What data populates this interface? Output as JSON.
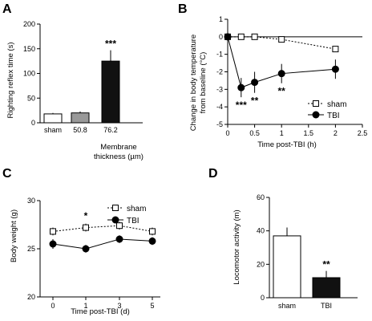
{
  "chart_data": [
    {
      "panel": "A",
      "type": "bar",
      "ylabel": "Righting reflex time (s)",
      "xlabel": "Membrane thickness (µm)",
      "xlabel_lines": [
        "Membrane",
        "thickness (µm)"
      ],
      "ylim": [
        0,
        200
      ],
      "yticks": [
        "0",
        "50",
        "100",
        "150",
        "200"
      ],
      "categories": [
        "sham",
        "50.8",
        "76.2"
      ],
      "values": [
        18,
        20,
        125
      ],
      "errors": [
        2,
        3,
        22
      ],
      "colors": [
        "#ffffff",
        "#999999",
        "#111111"
      ],
      "annotations": [
        "",
        "",
        "***"
      ]
    },
    {
      "panel": "B",
      "type": "line",
      "ylabel": "Change in body temperature from baseline (°C)",
      "ylabel_lines": [
        "Change in body temperature",
        "from baseline (°C)"
      ],
      "xlabel": "Time post-TBI (h)",
      "xlim": [
        0,
        2.5
      ],
      "ylim": [
        -5,
        1
      ],
      "xticks": [
        "0",
        "0.5",
        "1",
        "1.5",
        "2",
        "2.5"
      ],
      "yticks": [
        "1",
        "0",
        "-1",
        "-2",
        "-3",
        "-4",
        "-5"
      ],
      "x": [
        0,
        0.25,
        0.5,
        1,
        2
      ],
      "series": [
        {
          "name": "sham",
          "values": [
            0,
            0,
            0,
            -0.15,
            -0.7
          ],
          "errors": [
            0.1,
            0.1,
            0.1,
            0.15,
            0.15
          ],
          "marker": "open-square",
          "dashed": true
        },
        {
          "name": "TBI",
          "values": [
            0,
            -2.9,
            -2.6,
            -2.1,
            -1.85
          ],
          "errors": [
            0.1,
            0.55,
            0.6,
            0.55,
            0.55
          ],
          "marker": "filled-circle",
          "dashed": false
        }
      ],
      "annotations": [
        {
          "x": 0.25,
          "text": "***"
        },
        {
          "x": 0.5,
          "text": "**"
        },
        {
          "x": 1,
          "text": "**"
        }
      ],
      "legend_position": "right"
    },
    {
      "panel": "C",
      "type": "line",
      "ylabel": "Body weight (g)",
      "xlabel": "Time post-TBI (d)",
      "ylim": [
        20,
        30
      ],
      "yticks": [
        "20",
        "25",
        "30"
      ],
      "categories": [
        "0",
        "1",
        "3",
        "5"
      ],
      "series": [
        {
          "name": "sham",
          "values": [
            26.8,
            27.2,
            27.4,
            26.8
          ],
          "errors": [
            0.4,
            0.4,
            0.4,
            0.4
          ],
          "marker": "open-square",
          "dashed": true
        },
        {
          "name": "TBI",
          "values": [
            25.5,
            25.0,
            26.0,
            25.8
          ],
          "errors": [
            0.5,
            0.4,
            0.4,
            0.4
          ],
          "marker": "filled-circle",
          "dashed": false
        }
      ],
      "annotations": [
        {
          "index": 1,
          "text": "*"
        }
      ],
      "legend_position": "top-right"
    },
    {
      "panel": "D",
      "type": "bar",
      "ylabel": "Locomotor activity (m)",
      "ylim": [
        0,
        60
      ],
      "yticks": [
        "0",
        "20",
        "40",
        "60"
      ],
      "categories": [
        "sham",
        "TBI"
      ],
      "values": [
        37,
        12
      ],
      "errors": [
        5,
        4
      ],
      "colors": [
        "#ffffff",
        "#111111"
      ],
      "annotations": [
        "",
        "**"
      ]
    }
  ]
}
